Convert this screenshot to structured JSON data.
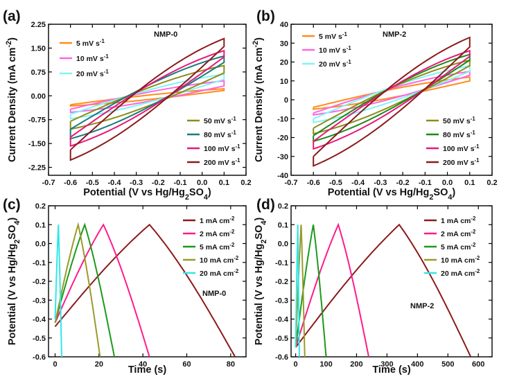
{
  "chart_data": [
    {
      "panel": "(a)",
      "type": "line",
      "annotation": "NMP-0",
      "xlabel": "Potential (V vs Hg/Hg2SO4)",
      "ylabel": "Current Density (mA cm-2)",
      "xlim": [
        -0.7,
        0.2
      ],
      "ylim": [
        -2.5,
        2.25
      ],
      "x_ticks": [
        "-0.7",
        "-0.6",
        "-0.5",
        "-0.4",
        "-0.3",
        "-0.2",
        "-0.1",
        "0.0",
        "0.1",
        "0.2"
      ],
      "y_ticks": [
        "2.25",
        "1.50",
        "0.75",
        "0.00",
        "-0.75",
        "-1.50",
        "-2.25"
      ],
      "y_tick_values": [
        2.25,
        1.5,
        0.75,
        0.0,
        -0.75,
        -1.5,
        -2.25
      ],
      "series": [
        {
          "name": "5 mV s-1",
          "color": "#ff8c1a",
          "curve": "cv",
          "x_range": [
            -0.6,
            0.1
          ],
          "upper_start": -0.28,
          "upper_end": 0.22,
          "lower_end": 0.17,
          "lower_start": -0.32
        },
        {
          "name": "10 mV s-1",
          "color": "#ff66e0",
          "curve": "cv",
          "x_range": [
            -0.6,
            0.1
          ],
          "upper_start": -0.42,
          "upper_end": 0.47,
          "lower_end": 0.31,
          "lower_start": -0.52
        },
        {
          "name": "20 mV s-1",
          "color": "#7ff5f5",
          "curve": "cv",
          "x_range": [
            -0.6,
            0.1
          ],
          "upper_start": -0.58,
          "upper_end": 0.68,
          "lower_end": 0.52,
          "lower_start": -0.72
        },
        {
          "name": "50 mV s-1",
          "color": "#8c8c1a",
          "curve": "cv",
          "x_range": [
            -0.6,
            0.1
          ],
          "upper_start": -0.8,
          "upper_end": 0.95,
          "lower_end": 0.72,
          "lower_start": -1.05
        },
        {
          "name": "80 mV s-1",
          "color": "#1a7a7a",
          "curve": "cv",
          "x_range": [
            -0.6,
            0.1
          ],
          "upper_start": -1.05,
          "upper_end": 1.25,
          "lower_end": 1.05,
          "lower_start": -1.35
        },
        {
          "name": "100 mV s-1",
          "color": "#e8187a",
          "curve": "cv",
          "x_range": [
            -0.6,
            0.1
          ],
          "upper_start": -1.3,
          "upper_end": 1.42,
          "lower_end": 1.22,
          "lower_start": -1.58
        },
        {
          "name": "200 mV s-1",
          "color": "#8b1a1a",
          "curve": "cv",
          "x_range": [
            -0.6,
            0.1
          ],
          "upper_start": -1.7,
          "upper_end": 1.8,
          "lower_end": 1.55,
          "lower_start": -2.02
        }
      ]
    },
    {
      "panel": "(b)",
      "type": "line",
      "annotation": "NMP-2",
      "xlabel": "Potential (V vs Hg/Hg2SO4)",
      "ylabel": "Current Density (mA cm-2)",
      "xlim": [
        -0.7,
        0.2
      ],
      "ylim": [
        -40,
        40
      ],
      "x_ticks": [
        "-0.7",
        "-0.6",
        "-0.5",
        "-0.4",
        "-0.3",
        "-0.2",
        "-0.1",
        "0.0",
        "0.1",
        "0.2"
      ],
      "y_ticks": [
        "40",
        "30",
        "20",
        "10",
        "0",
        "-10",
        "-20",
        "-30",
        "-40"
      ],
      "y_tick_values": [
        40,
        30,
        20,
        10,
        0,
        -10,
        -20,
        -30,
        -40
      ],
      "series": [
        {
          "name": "5 mV s-1",
          "color": "#ff8c1a",
          "curve": "cv",
          "x_range": [
            -0.6,
            0.1
          ],
          "upper_start": -4,
          "upper_end": 12,
          "lower_end": 10,
          "lower_start": -5
        },
        {
          "name": "10 mV s-1",
          "color": "#ff66e0",
          "curve": "cv",
          "x_range": [
            -0.6,
            0.1
          ],
          "upper_start": -7,
          "upper_end": 15,
          "lower_end": 13,
          "lower_start": -8
        },
        {
          "name": "20 mV s-1",
          "color": "#7ff5f5",
          "curve": "cv",
          "x_range": [
            -0.6,
            0.1
          ],
          "upper_start": -10,
          "upper_end": 18,
          "lower_end": 15,
          "lower_start": -12
        },
        {
          "name": "50 mV s-1",
          "color": "#8c8c1a",
          "curve": "cv",
          "x_range": [
            -0.6,
            0.1
          ],
          "upper_start": -15,
          "upper_end": 21,
          "lower_end": 18,
          "lower_start": -18
        },
        {
          "name": "80 mV s-1",
          "color": "#1a8a1a",
          "curve": "cv",
          "x_range": [
            -0.6,
            0.1
          ],
          "upper_start": -19,
          "upper_end": 24,
          "lower_end": 21,
          "lower_start": -22
        },
        {
          "name": "100 mV s-1",
          "color": "#e8187a",
          "curve": "cv",
          "x_range": [
            -0.6,
            0.1
          ],
          "upper_start": -22,
          "upper_end": 26,
          "lower_end": 23,
          "lower_start": -26
        },
        {
          "name": "200 mV s-1",
          "color": "#8b1a1a",
          "curve": "cv",
          "x_range": [
            -0.6,
            0.1
          ],
          "upper_start": -30,
          "upper_end": 33,
          "lower_end": 28,
          "lower_start": -35
        }
      ]
    },
    {
      "panel": "(c)",
      "type": "line",
      "annotation": "NMP-0",
      "xlabel": "Time (s)",
      "ylabel": "Potential (V vs Hg/Hg2SO4)",
      "xlim": [
        -3,
        87
      ],
      "ylim": [
        -0.6,
        0.2
      ],
      "x_ticks": [
        "0",
        "20",
        "40",
        "60",
        "80"
      ],
      "x_tick_values": [
        0,
        20,
        40,
        60,
        80
      ],
      "y_ticks": [
        "0.2",
        "0.1",
        "0.0",
        "-0.1",
        "-0.2",
        "-0.3",
        "-0.4",
        "-0.5",
        "-0.6"
      ],
      "y_tick_values": [
        0.2,
        0.1,
        0.0,
        -0.1,
        -0.2,
        -0.3,
        -0.4,
        -0.5,
        -0.6
      ],
      "series": [
        {
          "name": "1 mA cm-2",
          "color": "#8b1a1a",
          "curve": "gcd",
          "t_start": 0,
          "v_start": -0.44,
          "t_peak": 43,
          "v_peak": 0.1,
          "t_end": 82,
          "v_end": -0.6
        },
        {
          "name": "2 mA cm-2",
          "color": "#ff1a8c",
          "curve": "gcd",
          "t_start": 0,
          "v_start": -0.42,
          "t_peak": 22,
          "v_peak": 0.1,
          "t_end": 43,
          "v_end": -0.6
        },
        {
          "name": "5 mA cm-2",
          "color": "#1a9a1a",
          "curve": "gcd",
          "t_start": 0,
          "v_start": -0.42,
          "t_peak": 13.5,
          "v_peak": 0.1,
          "t_end": 27,
          "v_end": -0.6
        },
        {
          "name": "10 mA cm-2",
          "color": "#9a9a2a",
          "curve": "gcd",
          "t_start": 0,
          "v_start": -0.42,
          "t_peak": 10.5,
          "v_peak": 0.1,
          "t_end": 20.5,
          "v_end": -0.6
        },
        {
          "name": "20 mA cm-2",
          "color": "#33e6e6",
          "curve": "gcd",
          "t_start": 0,
          "v_start": -0.4,
          "t_peak": 1.5,
          "v_peak": 0.1,
          "t_end": 3,
          "v_end": -0.6
        }
      ]
    },
    {
      "panel": "(d)",
      "type": "line",
      "annotation": "NMP-2",
      "xlabel": "Time (s)",
      "ylabel": "Potential (V vs Hg/Hg2SO4)",
      "xlim": [
        -15,
        645
      ],
      "ylim": [
        -0.6,
        0.2
      ],
      "x_ticks": [
        "0",
        "100",
        "200",
        "300",
        "400",
        "500",
        "600"
      ],
      "x_tick_values": [
        0,
        100,
        200,
        300,
        400,
        500,
        600
      ],
      "y_ticks": [
        "0.2",
        "0.1",
        "0.0",
        "-0.1",
        "-0.2",
        "-0.3",
        "-0.4",
        "-0.5",
        "-0.6"
      ],
      "y_tick_values": [
        0.2,
        0.1,
        0.0,
        -0.1,
        -0.2,
        -0.3,
        -0.4,
        -0.5,
        -0.6
      ],
      "series": [
        {
          "name": "1 mA cm-2",
          "color": "#8b1a1a",
          "curve": "gcd",
          "t_start": 0,
          "v_start": -0.55,
          "t_peak": 340,
          "v_peak": 0.1,
          "t_end": 575,
          "v_end": -0.6
        },
        {
          "name": "2 mA cm-2",
          "color": "#ff1a8c",
          "curve": "gcd",
          "t_start": 0,
          "v_start": -0.55,
          "t_peak": 140,
          "v_peak": 0.1,
          "t_end": 240,
          "v_end": -0.6
        },
        {
          "name": "5 mA cm-2",
          "color": "#1a9a1a",
          "curve": "gcd",
          "t_start": 0,
          "v_start": -0.55,
          "t_peak": 58,
          "v_peak": 0.1,
          "t_end": 100,
          "v_end": -0.6
        },
        {
          "name": "10 mA cm-2",
          "color": "#9a9a2a",
          "curve": "gcd",
          "t_start": 0,
          "v_start": -0.55,
          "t_peak": 18,
          "v_peak": 0.1,
          "t_end": 30,
          "v_end": -0.6
        },
        {
          "name": "20 mA cm-2",
          "color": "#33e6e6",
          "curve": "gcd",
          "t_start": 0,
          "v_start": -0.55,
          "t_peak": 7,
          "v_peak": 0.1,
          "t_end": 12,
          "v_end": -0.6
        }
      ]
    }
  ]
}
